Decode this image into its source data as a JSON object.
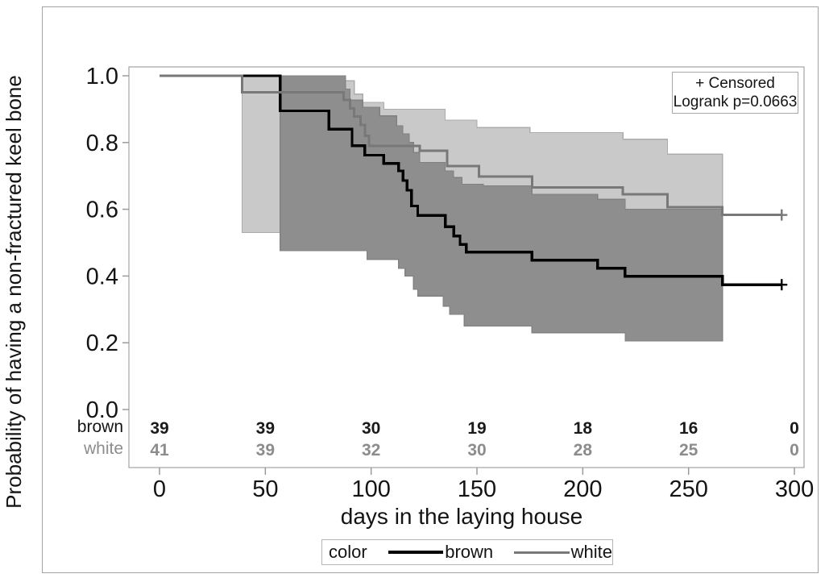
{
  "figure": {
    "censored_box": {
      "line1": "+ Censored",
      "line2": "Logrank p=0.0663"
    },
    "legend": {
      "title": "color",
      "series": [
        {
          "label": "brown",
          "color": "#000000"
        },
        {
          "label": "white",
          "color": "#787878"
        }
      ]
    }
  },
  "chart_data": {
    "type": "line",
    "subtype": "kaplan-meier-step",
    "title": "",
    "xlabel": "days in the laying house",
    "ylabel": "Probability of having a non-fractured keel bone",
    "xlim": [
      0,
      300
    ],
    "ylim": [
      0.0,
      1.0
    ],
    "x_ticks": [
      0,
      50,
      100,
      150,
      200,
      250,
      300
    ],
    "y_ticks": [
      0.0,
      0.2,
      0.4,
      0.6,
      0.8,
      1.0
    ],
    "grid": "off",
    "legend_position": "bottom",
    "logrank_p": "0.0663",
    "series": [
      {
        "name": "brown",
        "color": "#000000",
        "line_width": 3.4,
        "ci_fill": "#8e8e8e",
        "ci_stroke": "#808080",
        "points": [
          [
            0,
            1.0
          ],
          [
            57,
            0.895
          ],
          [
            80,
            0.84
          ],
          [
            91,
            0.79
          ],
          [
            97,
            0.762
          ],
          [
            106,
            0.737
          ],
          [
            113,
            0.715
          ],
          [
            115,
            0.686
          ],
          [
            117,
            0.657
          ],
          [
            119,
            0.61
          ],
          [
            122,
            0.582
          ],
          [
            135,
            0.548
          ],
          [
            139,
            0.52
          ],
          [
            142,
            0.495
          ],
          [
            145,
            0.472
          ],
          [
            176,
            0.447
          ],
          [
            207,
            0.423
          ],
          [
            220,
            0.399
          ],
          [
            266,
            0.374
          ],
          [
            294,
            0.374
          ]
        ],
        "censored": [
          [
            294,
            0.374
          ]
        ],
        "ci_upper": [
          [
            57,
            1.0
          ],
          [
            88,
            0.96
          ],
          [
            90,
            0.927
          ],
          [
            96,
            0.906
          ],
          [
            104,
            0.88
          ],
          [
            112,
            0.85
          ],
          [
            115,
            0.826
          ],
          [
            118,
            0.8
          ],
          [
            120,
            0.77
          ],
          [
            123,
            0.74
          ],
          [
            135,
            0.715
          ],
          [
            139,
            0.695
          ],
          [
            143,
            0.675
          ],
          [
            153,
            0.67
          ],
          [
            176,
            0.645
          ],
          [
            207,
            0.63
          ],
          [
            220,
            0.6
          ],
          [
            266,
            0.6
          ]
        ],
        "ci_lower": [
          [
            57,
            0.476
          ],
          [
            98,
            0.45
          ],
          [
            113,
            0.423
          ],
          [
            116,
            0.4
          ],
          [
            120,
            0.36
          ],
          [
            122,
            0.34
          ],
          [
            134,
            0.31
          ],
          [
            137,
            0.285
          ],
          [
            144,
            0.25
          ],
          [
            176,
            0.23
          ],
          [
            220,
            0.205
          ],
          [
            266,
            0.205
          ]
        ]
      },
      {
        "name": "white",
        "color": "#787878",
        "line_width": 3.0,
        "ci_fill": "#c9c9c9",
        "ci_stroke": "#ababab",
        "points": [
          [
            0,
            1.0
          ],
          [
            39,
            0.951
          ],
          [
            87,
            0.927
          ],
          [
            90,
            0.902
          ],
          [
            92,
            0.878
          ],
          [
            95,
            0.853
          ],
          [
            97,
            0.82
          ],
          [
            99,
            0.79
          ],
          [
            123,
            0.775
          ],
          [
            136,
            0.73
          ],
          [
            151,
            0.698
          ],
          [
            176,
            0.665
          ],
          [
            219,
            0.645
          ],
          [
            240,
            0.606
          ],
          [
            266,
            0.583
          ],
          [
            294,
            0.583
          ]
        ],
        "censored": [
          [
            294,
            0.583
          ]
        ],
        "ci_upper": [
          [
            39,
            1.0
          ],
          [
            87,
            0.985
          ],
          [
            92,
            0.945
          ],
          [
            96,
            0.92
          ],
          [
            106,
            0.9
          ],
          [
            135,
            0.867
          ],
          [
            150,
            0.845
          ],
          [
            175,
            0.83
          ],
          [
            219,
            0.81
          ],
          [
            240,
            0.765
          ],
          [
            266,
            0.765
          ]
        ],
        "ci_lower": [
          [
            39,
            0.53
          ],
          [
            98,
            0.505
          ],
          [
            120,
            0.48
          ],
          [
            135,
            0.46
          ],
          [
            150,
            0.44
          ],
          [
            176,
            0.42
          ],
          [
            240,
            0.4
          ],
          [
            266,
            0.4
          ]
        ]
      }
    ],
    "at_risk": {
      "days": [
        0,
        50,
        100,
        150,
        200,
        250,
        300
      ],
      "rows": [
        {
          "label": "brown",
          "color": "#1a1a1a",
          "counts": [
            39,
            39,
            30,
            19,
            18,
            16,
            0
          ]
        },
        {
          "label": "white",
          "color": "#8c8c8c",
          "counts": [
            41,
            39,
            32,
            30,
            28,
            25,
            0
          ]
        }
      ]
    }
  }
}
